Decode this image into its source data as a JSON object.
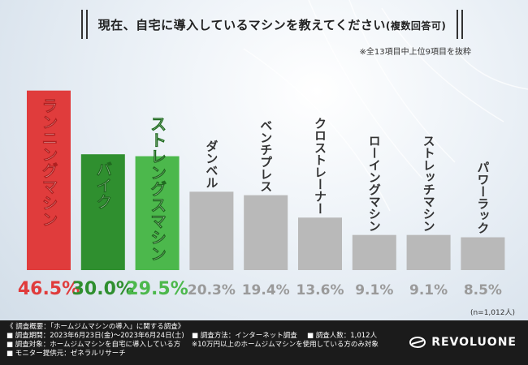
{
  "title": "現在、自宅に導入しているマシンを教えてください",
  "title_suffix": "(複数回答可)",
  "subtitle": "※全13項目中上位9項目を抜粋",
  "sample_note": "(n=1,012人)",
  "colors": {
    "red": "#e03c3c",
    "green_dark": "#2f8f2f",
    "green_light": "#4cb84c",
    "gray": "#b9b9b9",
    "gray_label": "#9a9a9a"
  },
  "chart_data": {
    "type": "bar",
    "categories": [
      "ランニングマシン",
      "バイク",
      "ストレングスマシン",
      "ダンベル",
      "ベンチプレス",
      "クロストレーナー",
      "ローイングマシン",
      "ストレッチマシン",
      "パワーラック"
    ],
    "values": [
      46.5,
      30.0,
      29.5,
      20.3,
      19.4,
      13.6,
      9.1,
      9.1,
      8.5
    ],
    "value_labels": [
      "46.5%",
      "30.0%",
      "29.5%",
      "20.3%",
      "19.4%",
      "13.6%",
      "9.1%",
      "9.1%",
      "8.5%"
    ],
    "unit": "%",
    "ylim": [
      0,
      50
    ],
    "grid": false,
    "bar_colors": [
      "#e03c3c",
      "#2f8f2f",
      "#4cb84c",
      "#b9b9b9",
      "#b9b9b9",
      "#b9b9b9",
      "#b9b9b9",
      "#b9b9b9",
      "#b9b9b9"
    ],
    "label_colors": [
      "#e03c3c",
      "#2f8f2f",
      "#4cb84c",
      "#9a9a9a",
      "#9a9a9a",
      "#9a9a9a",
      "#9a9a9a",
      "#9a9a9a",
      "#9a9a9a"
    ]
  },
  "footer": {
    "line1": "《 調査概要：「ホームジムマシンの導入」に関する調査》",
    "line2": "■ 調査期間：2023年6月23日(金)～2023年6月24日(土)",
    "line2b": "■ 調査方法：インターネット調査",
    "line2c": "■ 調査人数：1,012人",
    "line3": "■ 調査対象：ホームジムマシンを自宅に導入している方",
    "line3b": "※10万円以上のホームジムマシンを使用している方のみ対象",
    "line4": "■ モニター提供元：ゼネラルリサーチ",
    "logo": "REVOLUONE"
  }
}
